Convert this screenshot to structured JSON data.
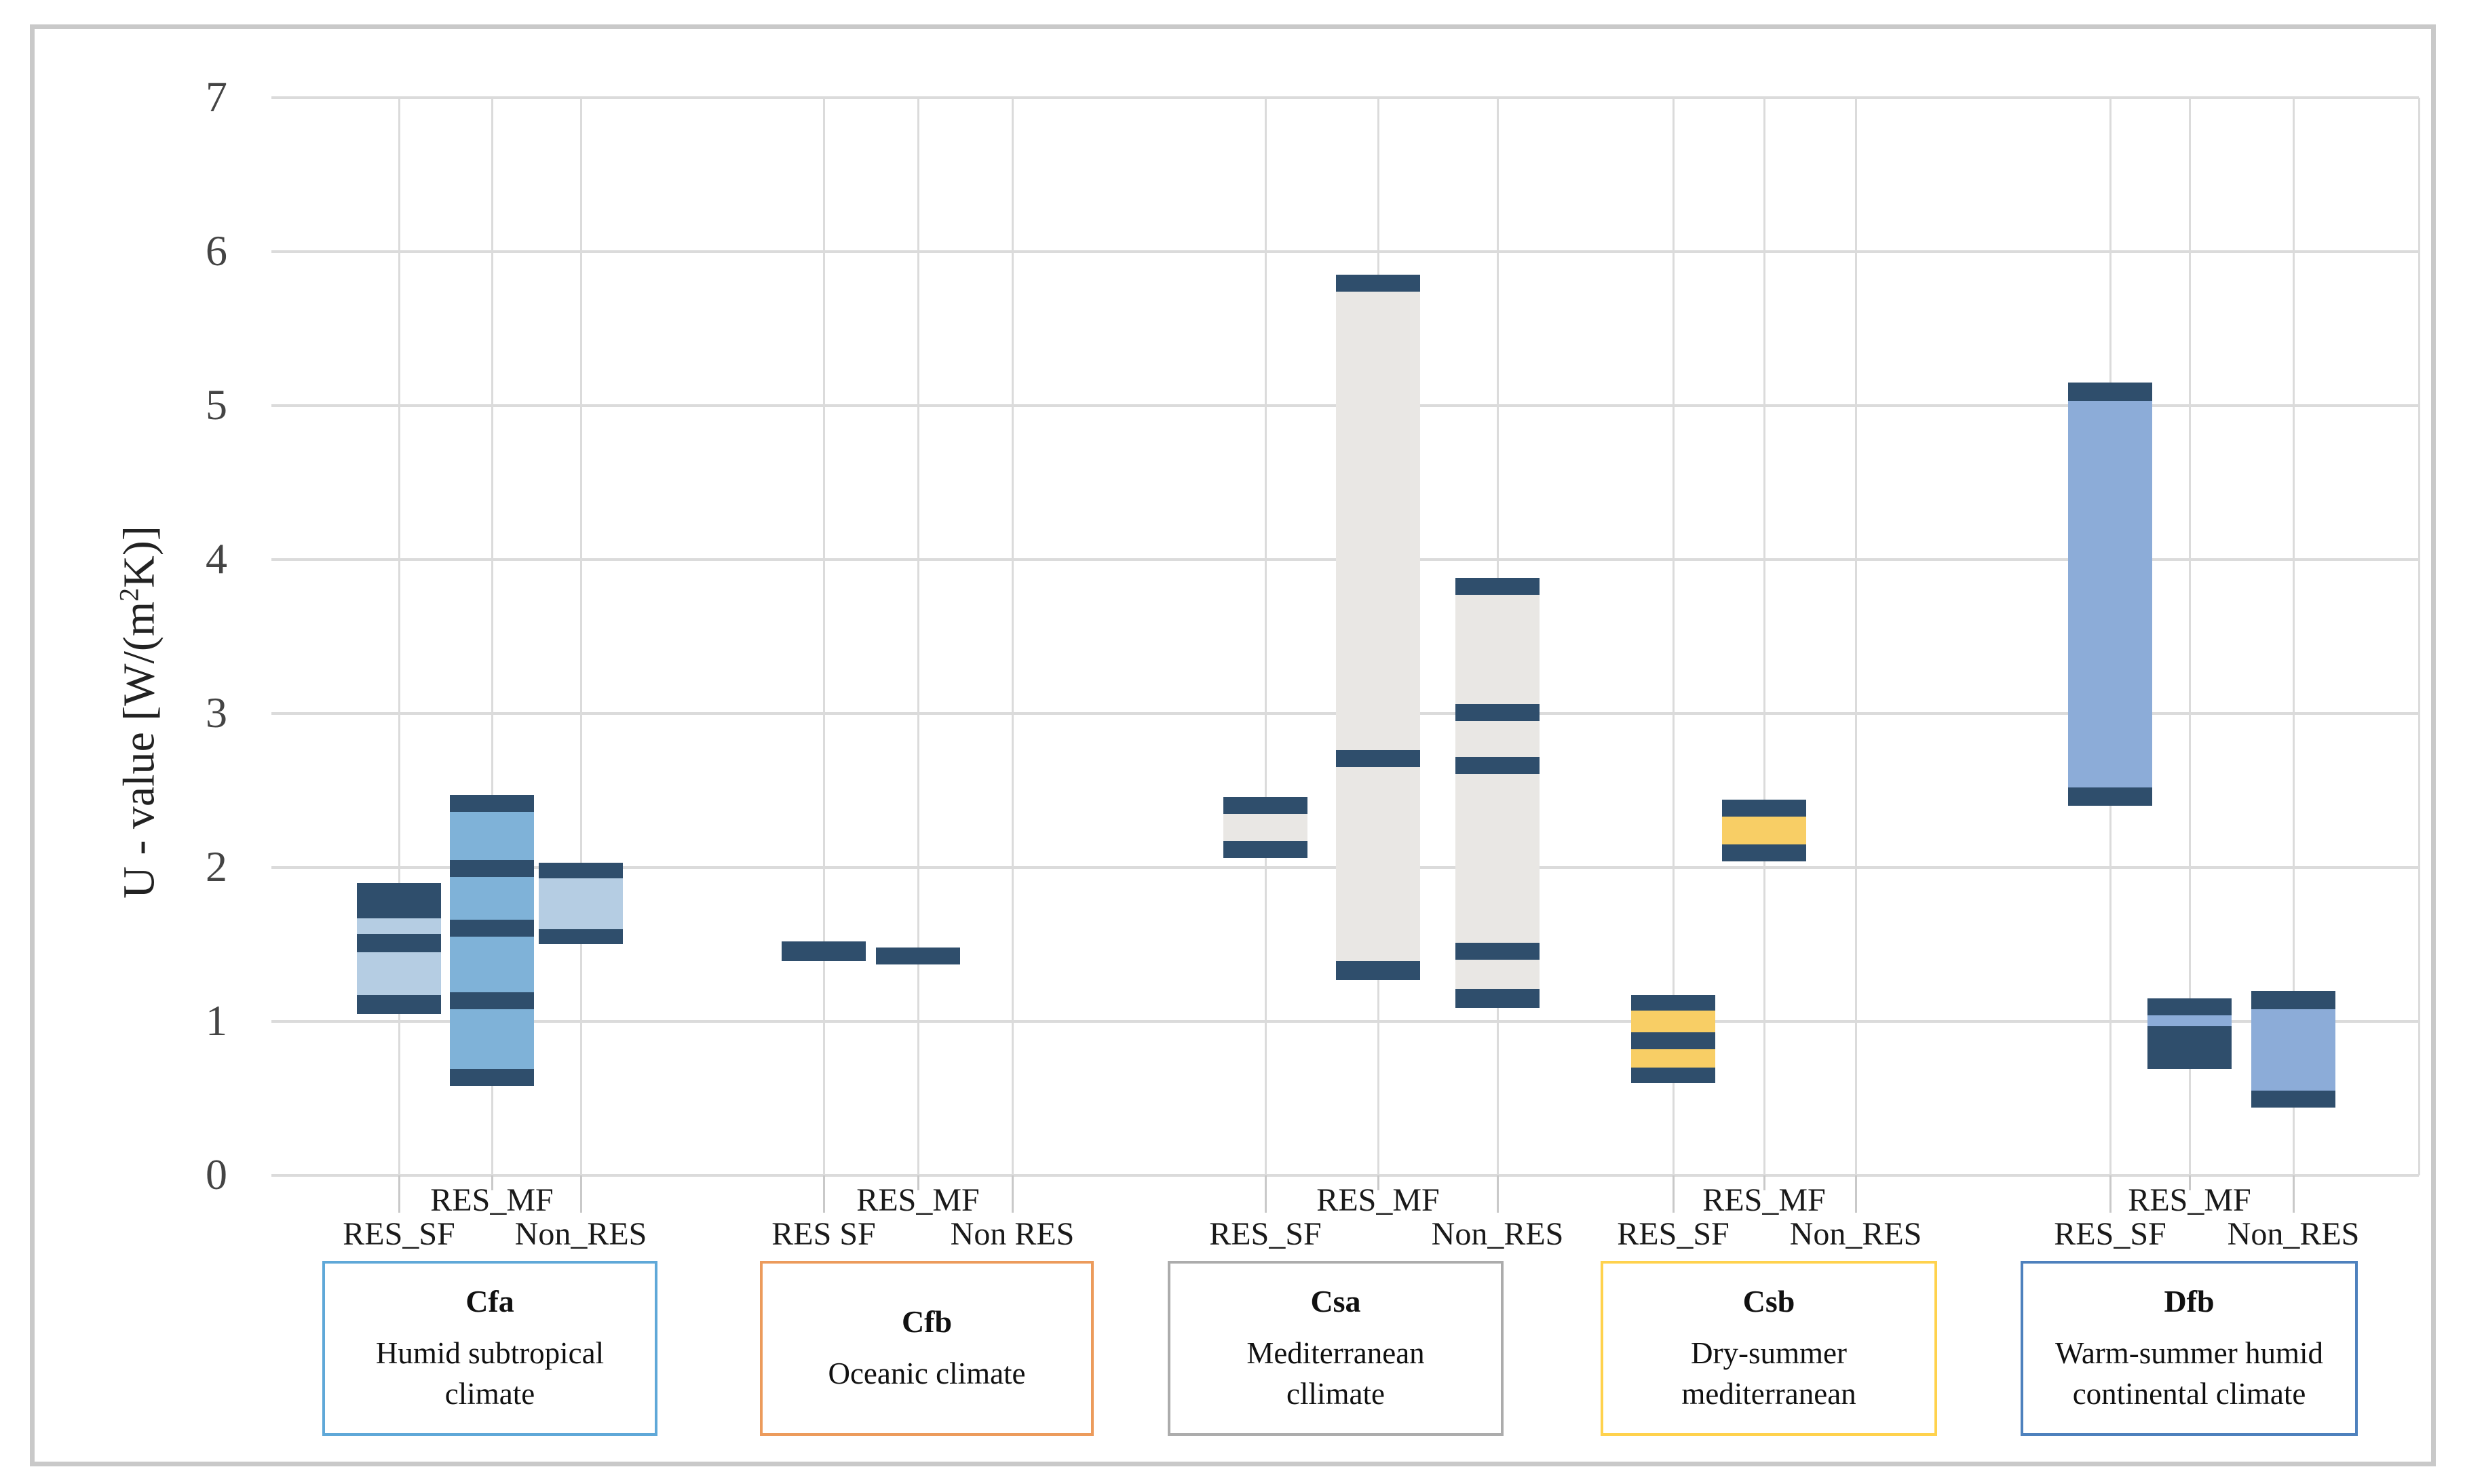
{
  "figure_title": "",
  "y_axis": {
    "title_prefix": "U - value [W/(m",
    "title_sup": "2",
    "title_suffix": "K)]"
  },
  "chart_data": {
    "type": "bar",
    "subtype": "floating-range-bars-with-value-bands",
    "title": "",
    "xlabel": "",
    "ylabel": "U - value [W/(m2K)]",
    "ylim": [
      0,
      7
    ],
    "yticks": [
      0,
      1,
      2,
      3,
      4,
      5,
      6,
      7
    ],
    "grid": "on",
    "legend": "none",
    "band_color": "#2f4e6c",
    "grid_color": "#dbdbdb",
    "groups": [
      {
        "code": "Cfa",
        "desc_lines": [
          "Humid subtropical",
          "climate"
        ],
        "border_color": "#5fa8d8",
        "sub_labels": [
          "RES_SF",
          "RES_MF",
          "Non_RES"
        ],
        "bars": [
          {
            "label": "RES_SF",
            "min": 1.05,
            "max": 1.9,
            "fill": "#b5cde3",
            "bands": [
              [
                1.67,
                1.9
              ],
              [
                1.45,
                1.57
              ],
              [
                1.05,
                1.17
              ]
            ]
          },
          {
            "label": "RES_MF",
            "min": 0.58,
            "max": 2.47,
            "fill": "#7fb2d8",
            "bands": [
              [
                2.36,
                2.47
              ],
              [
                1.94,
                2.05
              ],
              [
                1.55,
                1.66
              ],
              [
                1.08,
                1.19
              ],
              [
                0.58,
                0.69
              ]
            ]
          },
          {
            "label": "Non_RES",
            "min": 1.5,
            "max": 2.03,
            "fill": "#b5cde3",
            "bands": [
              [
                1.93,
                2.03
              ],
              [
                1.5,
                1.6
              ]
            ]
          }
        ]
      },
      {
        "code": "Cfb",
        "desc_lines": [
          "Oceanic climate"
        ],
        "border_color": "#ec9b5c",
        "sub_labels": [
          "RES SF",
          "RES_MF",
          "Non RES"
        ],
        "bars": [
          {
            "label": "RES SF",
            "min": 1.39,
            "max": 1.52,
            "fill": "#2f4e6c",
            "bands": [
              [
                1.39,
                1.52
              ]
            ]
          },
          {
            "label": "RES_MF",
            "min": 1.37,
            "max": 1.48,
            "fill": "#2f4e6c",
            "bands": [
              [
                1.37,
                1.48
              ]
            ]
          }
        ]
      },
      {
        "code": "Csa",
        "desc_lines": [
          "Mediterranean",
          "cllimate"
        ],
        "border_color": "#acacac",
        "sub_labels": [
          "RES_SF",
          "RES_MF",
          "Non_RES"
        ],
        "bars": [
          {
            "label": "RES_SF",
            "min": 2.06,
            "max": 2.46,
            "fill": "#e9e7e4",
            "bands": [
              [
                2.35,
                2.46
              ],
              [
                2.06,
                2.17
              ]
            ]
          },
          {
            "label": "RES_MF",
            "min": 1.27,
            "max": 5.85,
            "fill": "#e9e7e4",
            "bands": [
              [
                5.74,
                5.85
              ],
              [
                2.65,
                2.76
              ],
              [
                1.27,
                1.39
              ]
            ]
          },
          {
            "label": "Non_RES",
            "min": 1.09,
            "max": 3.88,
            "fill": "#e9e7e4",
            "bands": [
              [
                3.77,
                3.88
              ],
              [
                2.95,
                3.06
              ],
              [
                2.61,
                2.72
              ],
              [
                1.4,
                1.51
              ],
              [
                1.09,
                1.21
              ]
            ]
          }
        ]
      },
      {
        "code": "Csb",
        "desc_lines": [
          "Dry-summer",
          "mediterranean"
        ],
        "border_color": "#ffd24d",
        "sub_labels": [
          "RES_SF",
          "RES_MF",
          "Non_RES"
        ],
        "bars": [
          {
            "label": "RES_SF",
            "min": 0.6,
            "max": 1.17,
            "fill": "#f8ce65",
            "bands": [
              [
                1.07,
                1.17
              ],
              [
                0.82,
                0.93
              ],
              [
                0.6,
                0.7
              ]
            ]
          },
          {
            "label": "RES_MF",
            "min": 2.04,
            "max": 2.44,
            "fill": "#f8ce65",
            "bands": [
              [
                2.33,
                2.44
              ],
              [
                2.04,
                2.15
              ]
            ]
          }
        ]
      },
      {
        "code": "Dfb",
        "desc_lines": [
          "Warm-summer humid",
          "continental climate"
        ],
        "border_color": "#4e81bd",
        "sub_labels": [
          "RES_SF",
          "RES_MF",
          "Non_RES"
        ],
        "bars": [
          {
            "label": "RES_SF",
            "min": 2.4,
            "max": 5.15,
            "fill": "#8cacd8",
            "bands": [
              [
                5.03,
                5.15
              ],
              [
                2.4,
                2.52
              ]
            ]
          },
          {
            "label": "RES_MF",
            "min": 0.69,
            "max": 1.15,
            "fill": "#8cacd8",
            "bands": [
              [
                1.04,
                1.15
              ],
              [
                0.69,
                0.97
              ]
            ]
          },
          {
            "label": "Non_RES",
            "min": 0.44,
            "max": 1.2,
            "fill": "#8cacd8",
            "bands": [
              [
                1.08,
                1.2
              ],
              [
                0.44,
                0.55
              ]
            ]
          }
        ]
      }
    ]
  }
}
